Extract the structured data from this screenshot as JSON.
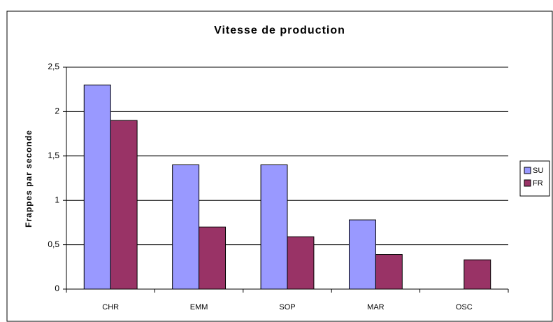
{
  "chart_data": {
    "type": "bar",
    "title": "Vitesse de production",
    "y_label": "Frappes par seconde",
    "categories": [
      "CHR",
      "EMM",
      "SOP",
      "MAR",
      "OSC"
    ],
    "series": [
      {
        "name": "SU",
        "color": "#9999ff",
        "values": [
          2.3,
          1.4,
          1.4,
          0.78,
          null
        ]
      },
      {
        "name": "FR",
        "color": "#993366",
        "values": [
          1.9,
          0.7,
          0.59,
          0.39,
          0.33
        ]
      }
    ],
    "ylim": [
      0,
      2.5
    ],
    "yticks": [
      0,
      {
        "value": 0.5,
        "label": "0,5"
      },
      1,
      {
        "value": 1.5,
        "label": "1,5"
      },
      2,
      {
        "value": 2.5,
        "label": "2,5"
      }
    ],
    "grid": true,
    "legend": "right"
  }
}
